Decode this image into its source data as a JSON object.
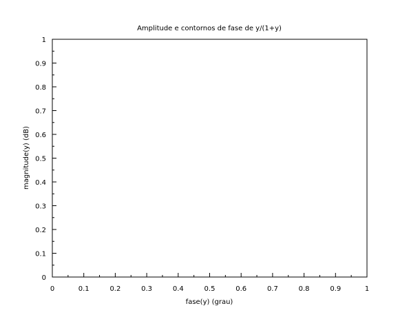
{
  "chart_data": {
    "type": "line",
    "title": "Amplitude e contornos de fase de y/(1+y)",
    "xlabel": "fase(y) (grau)",
    "ylabel": "magnitude(y) (dB)",
    "xlim": [
      0,
      1
    ],
    "ylim": [
      0,
      1
    ],
    "x_ticks": [
      "0",
      "0.1",
      "0.2",
      "0.3",
      "0.4",
      "0.5",
      "0.6",
      "0.7",
      "0.8",
      "0.9",
      "1"
    ],
    "y_ticks": [
      "0",
      "0.1",
      "0.2",
      "0.3",
      "0.4",
      "0.5",
      "0.6",
      "0.7",
      "0.8",
      "0.9",
      "1"
    ],
    "grid": false,
    "series": []
  }
}
